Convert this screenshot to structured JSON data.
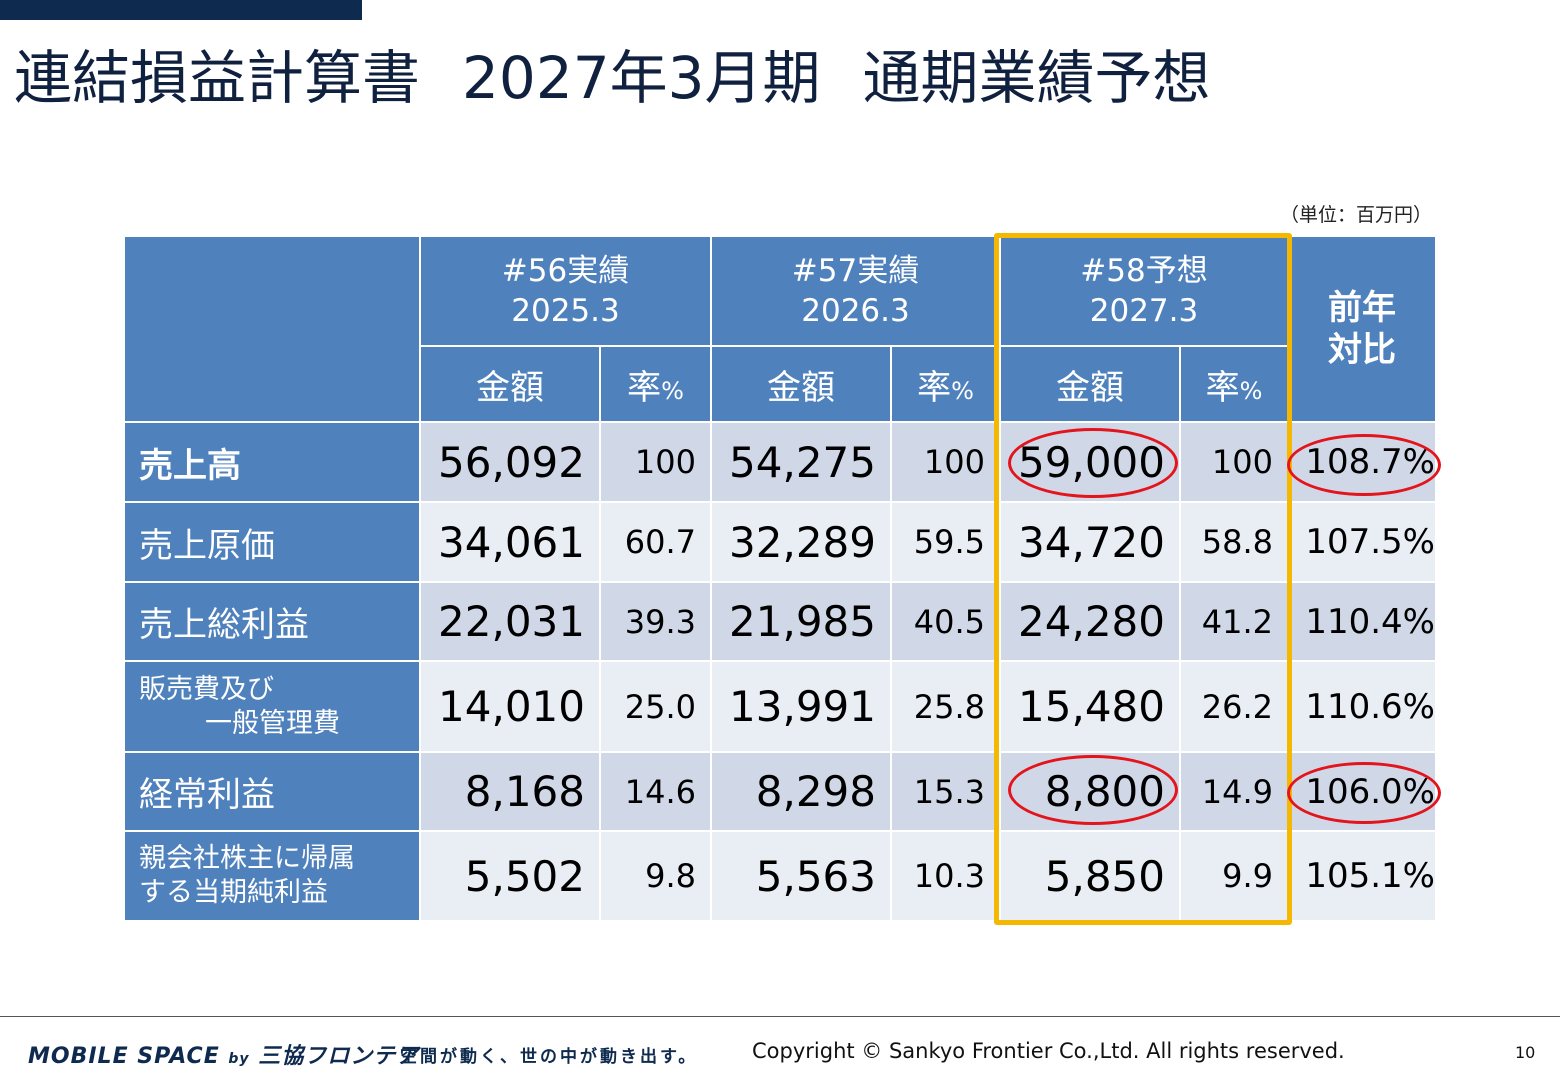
{
  "title": {
    "part1": "連結損益計算書",
    "part2": "2027年3月期",
    "part3": "通期業績予想"
  },
  "unit_note": "（単位：百万円）",
  "table": {
    "periods": [
      {
        "label": "#56実績",
        "date": "2025.3"
      },
      {
        "label": "#57実績",
        "date": "2026.3"
      },
      {
        "label": "#58予想",
        "date": "2027.3"
      }
    ],
    "amount_header": "金額",
    "rate_header": "率",
    "rate_unit": "%",
    "yoy_header_line1": "前年",
    "yoy_header_line2": "対比",
    "rows": [
      {
        "label": "売上高",
        "v56": "56,092",
        "r56": "100",
        "v57": "54,275",
        "r57": "100",
        "v58": "59,000",
        "r58": "100",
        "yoy": "108.7%"
      },
      {
        "label": "売上原価",
        "v56": "34,061",
        "r56": "60.7",
        "v57": "32,289",
        "r57": "59.5",
        "v58": "34,720",
        "r58": "58.8",
        "yoy": "107.5%"
      },
      {
        "label": "売上総利益",
        "v56": "22,031",
        "r56": "39.3",
        "v57": "21,985",
        "r57": "40.5",
        "v58": "24,280",
        "r58": "41.2",
        "yoy": "110.4%"
      },
      {
        "label_line1": "販売費及び",
        "label_line2": "一般管理費",
        "v56": "14,010",
        "r56": "25.0",
        "v57": "13,991",
        "r57": "25.8",
        "v58": "15,480",
        "r58": "26.2",
        "yoy": "110.6%"
      },
      {
        "label": "経常利益",
        "v56": "8,168",
        "r56": "14.6",
        "v57": "8,298",
        "r57": "15.3",
        "v58": "8,800",
        "r58": "14.9",
        "yoy": "106.0%"
      },
      {
        "label_line1": "親会社株主に帰属",
        "label_line2": "する当期純利益",
        "v56": "5,502",
        "r56": "9.8",
        "v57": "5,563",
        "r57": "10.3",
        "v58": "5,850",
        "r58": "9.9",
        "yoy": "105.1%"
      }
    ]
  },
  "footer": {
    "brand": "MOBILE SPACE",
    "brand_by": "by",
    "brand_company": "三協フロンテア",
    "tagline": "空間が動く、世の中が動き出す。",
    "copyright": "Copyright © Sankyo Frontier Co.,Ltd. All rights reserved.",
    "page_number": "10"
  },
  "colors": {
    "header_blue": "#4f81bd",
    "highlight_orange": "#f5b800",
    "circle_red": "#e3141b",
    "navy": "#0e2a4e"
  }
}
